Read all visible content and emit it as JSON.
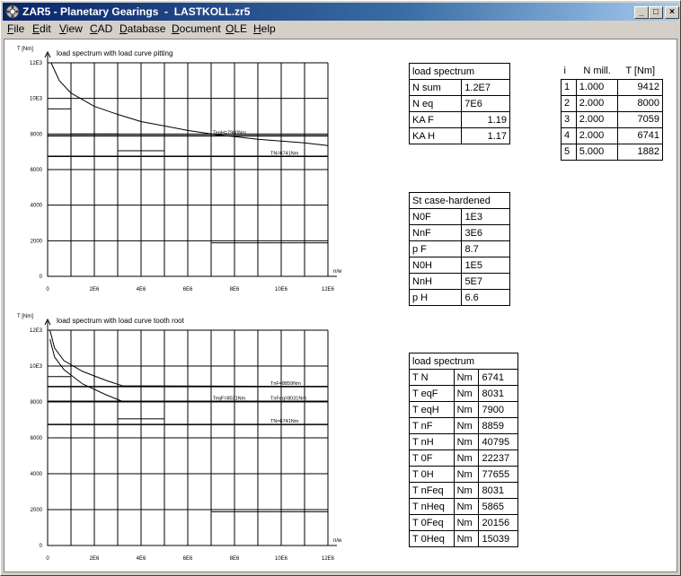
{
  "window": {
    "title": "ZAR5 - Planetary Gearings  -  LASTKOLL.zr5",
    "buttons": {
      "minimize": "_",
      "maximize": "□",
      "close": "×"
    }
  },
  "menu": [
    {
      "label": "File",
      "hotkey": "F"
    },
    {
      "label": "Edit",
      "hotkey": "E"
    },
    {
      "label": "View",
      "hotkey": "V"
    },
    {
      "label": "CAD",
      "hotkey": "C"
    },
    {
      "label": "Database",
      "hotkey": "D"
    },
    {
      "label": "Document",
      "hotkey": "D"
    },
    {
      "label": "OLE",
      "hotkey": "O"
    },
    {
      "label": "Help",
      "hotkey": "H"
    }
  ],
  "chart_data": [
    {
      "type": "line",
      "title": "load spectrum with load curve pitting",
      "ylabel": "T [Nm]",
      "xlabel": "n/w",
      "xlim": [
        0,
        12000000
      ],
      "ylim": [
        0,
        12000
      ],
      "xticks": [
        "0",
        "2E6",
        "4E6",
        "6E6",
        "8E6",
        "10E6",
        "12E6"
      ],
      "yticks": [
        "0",
        "2000",
        "4000",
        "6000",
        "8000",
        "10E3",
        "12E3"
      ],
      "spectrum_steps": [
        {
          "x0": 0,
          "x1": 1000000,
          "y": 9412
        },
        {
          "x0": 1000000,
          "x1": 3000000,
          "y": 8000
        },
        {
          "x0": 3000000,
          "x1": 5000000,
          "y": 7059
        },
        {
          "x0": 5000000,
          "x1": 7000000,
          "y": 6741
        },
        {
          "x0": 7000000,
          "x1": 12000000,
          "y": 1882
        }
      ],
      "curve": [
        [
          150000,
          12000
        ],
        [
          500000,
          11000
        ],
        [
          1000000,
          10300
        ],
        [
          2000000,
          9550
        ],
        [
          3000000,
          9100
        ],
        [
          4000000,
          8700
        ],
        [
          5000000,
          8450
        ],
        [
          6000000,
          8200
        ],
        [
          7000000,
          8000
        ],
        [
          8000000,
          7850
        ],
        [
          9000000,
          7700
        ],
        [
          10000000,
          7600
        ],
        [
          11000000,
          7500
        ],
        [
          12000000,
          7350
        ]
      ],
      "reference_lines": [
        {
          "label": "TeqH=7900Nm",
          "y": 7900
        },
        {
          "label": "TN=6741Nm",
          "y": 6741
        }
      ]
    },
    {
      "type": "line",
      "title": "load spectrum with load curve tooth root",
      "ylabel": "T [Nm]",
      "xlabel": "n/w",
      "xlim": [
        0,
        12000000
      ],
      "ylim": [
        0,
        12000
      ],
      "xticks": [
        "0",
        "2E6",
        "4E6",
        "6E6",
        "8E6",
        "10E6",
        "12E6"
      ],
      "yticks": [
        "0",
        "2000",
        "4000",
        "6000",
        "8000",
        "10E3",
        "12E3"
      ],
      "spectrum_steps": [
        {
          "x0": 0,
          "x1": 1000000,
          "y": 9412
        },
        {
          "x0": 1000000,
          "x1": 3000000,
          "y": 8000
        },
        {
          "x0": 3000000,
          "x1": 5000000,
          "y": 7059
        },
        {
          "x0": 5000000,
          "x1": 7000000,
          "y": 6741
        },
        {
          "x0": 7000000,
          "x1": 12000000,
          "y": 1882
        }
      ],
      "curve_nF": [
        [
          100000,
          12000
        ],
        [
          300000,
          11000
        ],
        [
          700000,
          10300
        ],
        [
          1500000,
          9700
        ],
        [
          2500000,
          9200
        ],
        [
          3200000,
          8900
        ],
        [
          12000000,
          8859
        ]
      ],
      "curve_eq": [
        [
          100000,
          11500
        ],
        [
          300000,
          10500
        ],
        [
          700000,
          9800
        ],
        [
          1500000,
          9000
        ],
        [
          2500000,
          8400
        ],
        [
          3200000,
          8031
        ],
        [
          12000000,
          8031
        ]
      ],
      "reference_lines": [
        {
          "label": "TnF=8859Nm",
          "y": 8859
        },
        {
          "label": "TeqF=8031Nm",
          "y": 8031
        },
        {
          "label": "TnFeq=8031Nm",
          "y": 8031
        },
        {
          "label": "TN=6741Nm",
          "y": 6741
        }
      ]
    }
  ],
  "tables": {
    "load_spectrum_1": {
      "title": "load spectrum",
      "rows": [
        [
          "N sum",
          "1.2E7"
        ],
        [
          "N eq",
          "7E6"
        ],
        [
          "KA F",
          "1.19"
        ],
        [
          "KA H",
          "1.17"
        ]
      ]
    },
    "steps": {
      "headers": [
        "i",
        "N mill.",
        "T [Nm]"
      ],
      "rows": [
        [
          "1",
          "1.000",
          "9412"
        ],
        [
          "2",
          "2.000",
          "8000"
        ],
        [
          "3",
          "2.000",
          "7059"
        ],
        [
          "4",
          "2.000",
          "6741"
        ],
        [
          "5",
          "5.000",
          "1882"
        ]
      ]
    },
    "material": {
      "title": "St case-hardened",
      "rows": [
        [
          "N0F",
          "1E3"
        ],
        [
          "NnF",
          "3E6"
        ],
        [
          "p F",
          "8.7"
        ],
        [
          "N0H",
          "1E5"
        ],
        [
          "NnH",
          "5E7"
        ],
        [
          "p H",
          "6.6"
        ]
      ]
    },
    "load_spectrum_2": {
      "title": "load spectrum",
      "rows": [
        [
          "T N",
          "Nm",
          "6741"
        ],
        [
          "T eqF",
          "Nm",
          "8031"
        ],
        [
          "T eqH",
          "Nm",
          "7900"
        ],
        [
          "T nF",
          "Nm",
          "8859"
        ],
        [
          "T nH",
          "Nm",
          "40795"
        ],
        [
          "T 0F",
          "Nm",
          "22237"
        ],
        [
          "T 0H",
          "Nm",
          "77655"
        ],
        [
          "T nFeq",
          "Nm",
          "8031"
        ],
        [
          "T nHeq",
          "Nm",
          "5865"
        ],
        [
          "T 0Feq",
          "Nm",
          "20156"
        ],
        [
          "T 0Heq",
          "Nm",
          "15039"
        ]
      ]
    }
  }
}
